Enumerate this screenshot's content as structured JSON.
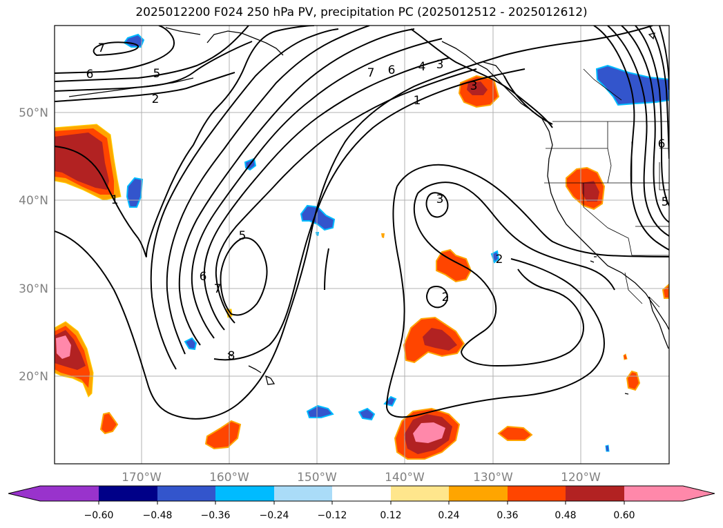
{
  "title": "2025012200 F024 250 hPa PV, precipitation PC (2025012512 - 2025012612)",
  "map": {
    "lat_labels": [
      "50°N",
      "40°N",
      "30°N",
      "20°N"
    ],
    "lon_labels": [
      "170°W",
      "160°W",
      "150°W",
      "140°W",
      "130°W",
      "120°W"
    ],
    "contour_labels": [
      "7",
      "6",
      "5",
      "2",
      "7",
      "6",
      "4",
      "3",
      "1",
      "1",
      "3",
      "5",
      "6",
      "7",
      "3",
      "2",
      "2",
      "8",
      "6",
      "5"
    ]
  },
  "colorbar": {
    "tick_labels": [
      "−0.60",
      "−0.48",
      "−0.36",
      "−0.24",
      "−0.12",
      "0.12",
      "0.24",
      "0.36",
      "0.48",
      "0.60"
    ],
    "colors": [
      "#9933cc",
      "#000088",
      "#3355cc",
      "#00bbff",
      "#aadcf8",
      "#ffffff",
      "#ffe68c",
      "#ffa500",
      "#ff4500",
      "#b22222",
      "#ff88aa",
      "#ff88aa"
    ]
  }
}
